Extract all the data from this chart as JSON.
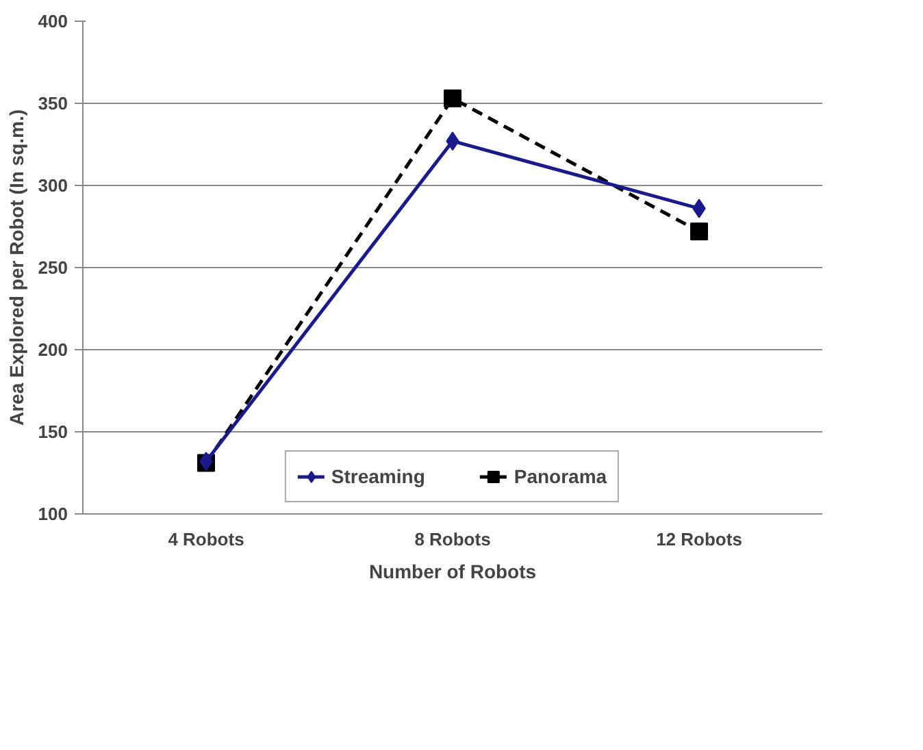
{
  "chart_data": {
    "type": "line",
    "xlabel": "Number of Robots",
    "ylabel": "Area Explored per Robot (In sq.m.)",
    "categories": [
      "4 Robots",
      "8 Robots",
      "12 Robots"
    ],
    "series": [
      {
        "name": "Streaming",
        "color": "#1a1a8c",
        "values": [
          132,
          327,
          286
        ],
        "marker": "diamond",
        "line_style": "solid"
      },
      {
        "name": "Panorama",
        "color": "#000000",
        "values": [
          131,
          353,
          272
        ],
        "marker": "square",
        "line_style": "dashed"
      }
    ],
    "ylim": [
      100,
      400
    ],
    "yticks": [
      100,
      150,
      200,
      250,
      300,
      350,
      400
    ],
    "grid": "y",
    "legend": "bottom"
  }
}
